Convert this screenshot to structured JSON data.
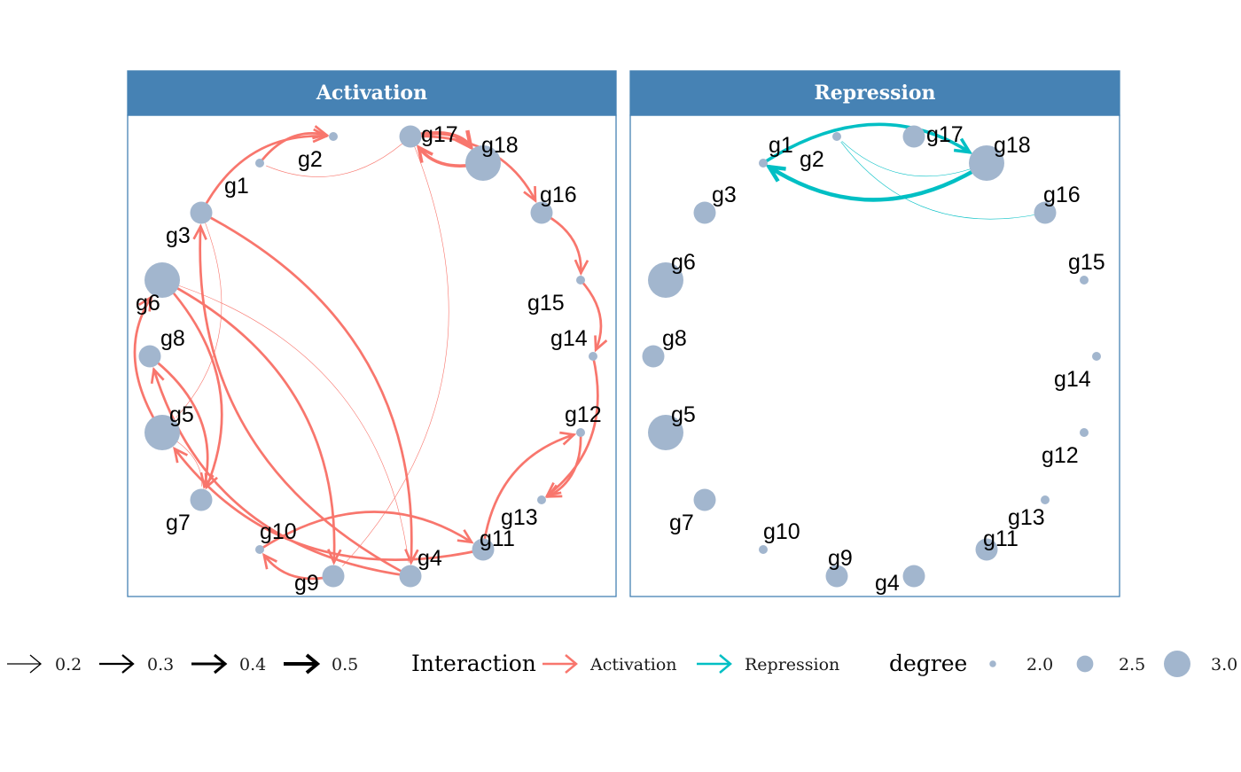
{
  "colors": {
    "strip": "#4682B4",
    "panel_border": "#4682B4",
    "node": "#A2B6CE",
    "activation": "#F8766D",
    "repression": "#00BFC4",
    "weight_arrow": "#000000"
  },
  "panels": [
    {
      "title": "Activation",
      "interaction": "Activation",
      "nodes": [
        {
          "id": "g1",
          "label": "g1",
          "degree": 2.0
        },
        {
          "id": "g2",
          "label": "g2",
          "degree": 2.0
        },
        {
          "id": "g3",
          "label": "g3",
          "degree": 2.5
        },
        {
          "id": "g4",
          "label": "g4",
          "degree": 2.5
        },
        {
          "id": "g5",
          "label": "g5",
          "degree": 3.0
        },
        {
          "id": "g6",
          "label": "g6",
          "degree": 3.0
        },
        {
          "id": "g7",
          "label": "g7",
          "degree": 2.5
        },
        {
          "id": "g8",
          "label": "g8",
          "degree": 2.5
        },
        {
          "id": "g9",
          "label": "g9",
          "degree": 2.5
        },
        {
          "id": "g10",
          "label": "g10",
          "degree": 2.0
        },
        {
          "id": "g11",
          "label": "g11",
          "degree": 2.5
        },
        {
          "id": "g12",
          "label": "g12",
          "degree": 2.0
        },
        {
          "id": "g13",
          "label": "g13",
          "degree": 2.0
        },
        {
          "id": "g14",
          "label": "g14",
          "degree": 2.0
        },
        {
          "id": "g15",
          "label": "g15",
          "degree": 2.0
        },
        {
          "id": "g16",
          "label": "g16",
          "degree": 2.5
        },
        {
          "id": "g17",
          "label": "g17",
          "degree": 2.5
        },
        {
          "id": "g18",
          "label": "g18",
          "degree": 3.0
        }
      ],
      "edges": [
        {
          "from": "g1",
          "to": "g2",
          "weight": 0.3
        },
        {
          "from": "g3",
          "to": "g2",
          "weight": 0.3
        },
        {
          "from": "g17",
          "to": "g18",
          "weight": 0.5
        },
        {
          "from": "g18",
          "to": "g17",
          "weight": 0.4
        },
        {
          "from": "g17",
          "to": "g16",
          "weight": 0.3
        },
        {
          "from": "g16",
          "to": "g15",
          "weight": 0.3
        },
        {
          "from": "g15",
          "to": "g14",
          "weight": 0.3
        },
        {
          "from": "g14",
          "to": "g13",
          "weight": 0.3
        },
        {
          "from": "g12",
          "to": "g13",
          "weight": 0.3
        },
        {
          "from": "g11",
          "to": "g12",
          "weight": 0.3
        },
        {
          "from": "g4",
          "to": "g3",
          "weight": 0.3
        },
        {
          "from": "g3",
          "to": "g4",
          "weight": 0.3
        },
        {
          "from": "g6",
          "to": "g7",
          "weight": 0.3
        },
        {
          "from": "g6",
          "to": "g9",
          "weight": 0.3
        },
        {
          "from": "g5",
          "to": "g6",
          "weight": 0.3
        },
        {
          "from": "g8",
          "to": "g7",
          "weight": 0.3
        },
        {
          "from": "g4",
          "to": "g8",
          "weight": 0.3
        },
        {
          "from": "g11",
          "to": "g5",
          "weight": 0.3
        },
        {
          "from": "g9",
          "to": "g10",
          "weight": 0.3
        },
        {
          "from": "g10",
          "to": "g11",
          "weight": 0.3
        },
        {
          "from": "g3",
          "to": "g5",
          "weight": 0.1
        },
        {
          "from": "g6",
          "to": "g4",
          "weight": 0.1
        },
        {
          "from": "g17",
          "to": "g1",
          "weight": 0.1
        },
        {
          "from": "g17",
          "to": "g9",
          "weight": 0.1
        },
        {
          "from": "g5",
          "to": "g7",
          "weight": 0.1
        }
      ]
    },
    {
      "title": "Repression",
      "interaction": "Repression",
      "nodes": [
        {
          "id": "g1",
          "label": "g1",
          "degree": 2.0
        },
        {
          "id": "g2",
          "label": "g2",
          "degree": 2.0
        },
        {
          "id": "g3",
          "label": "g3",
          "degree": 2.5
        },
        {
          "id": "g4",
          "label": "g4",
          "degree": 2.5
        },
        {
          "id": "g5",
          "label": "g5",
          "degree": 3.0
        },
        {
          "id": "g6",
          "label": "g6",
          "degree": 3.0
        },
        {
          "id": "g7",
          "label": "g7",
          "degree": 2.5
        },
        {
          "id": "g8",
          "label": "g8",
          "degree": 2.5
        },
        {
          "id": "g9",
          "label": "g9",
          "degree": 2.5
        },
        {
          "id": "g10",
          "label": "g10",
          "degree": 2.0
        },
        {
          "id": "g11",
          "label": "g11",
          "degree": 2.5
        },
        {
          "id": "g12",
          "label": "g12",
          "degree": 2.0
        },
        {
          "id": "g13",
          "label": "g13",
          "degree": 2.0
        },
        {
          "id": "g14",
          "label": "g14",
          "degree": 2.0
        },
        {
          "id": "g15",
          "label": "g15",
          "degree": 2.0
        },
        {
          "id": "g16",
          "label": "g16",
          "degree": 2.5
        },
        {
          "id": "g17",
          "label": "g17",
          "degree": 2.5
        },
        {
          "id": "g18",
          "label": "g18",
          "degree": 3.0
        }
      ],
      "edges": [
        {
          "from": "g18",
          "to": "g1",
          "weight": 0.5
        },
        {
          "from": "g1",
          "to": "g18",
          "weight": 0.4
        },
        {
          "from": "g18",
          "to": "g2",
          "weight": 0.1
        },
        {
          "from": "g16",
          "to": "g2",
          "weight": 0.1
        }
      ]
    }
  ],
  "legend": {
    "weight_items": [
      {
        "label": "0.2",
        "weight": 0.2
      },
      {
        "label": "0.3",
        "weight": 0.3
      },
      {
        "label": "0.4",
        "weight": 0.4
      },
      {
        "label": "0.5",
        "weight": 0.5
      }
    ],
    "interaction_title": "Interaction",
    "interaction_items": [
      {
        "label": "Activation",
        "color": "#F8766D"
      },
      {
        "label": "Repression",
        "color": "#00BFC4"
      }
    ],
    "degree_title": "degree",
    "degree_items": [
      {
        "label": "2.0",
        "degree": 2.0
      },
      {
        "label": "2.5",
        "degree": 2.5
      },
      {
        "label": "3.0",
        "degree": 3.0
      }
    ]
  }
}
